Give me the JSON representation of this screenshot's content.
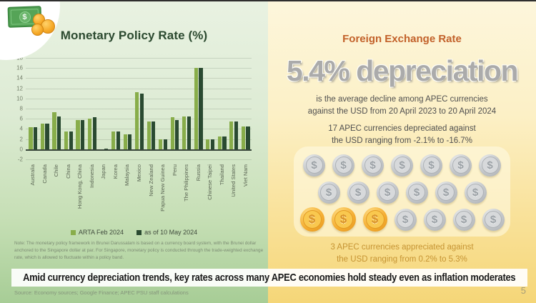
{
  "slide": {
    "headline": "Amid currency depreciation trends, key rates across many APEC economies hold steady even as inflation moderates",
    "source": "Source: Economy sources; Google Finance; APEC PSU staff calculations",
    "page_number": "5"
  },
  "icons": {
    "money_icon": "banknote-with-gold-coins",
    "dollar_glyph": "$"
  },
  "colors": {
    "bar_light_green": "#88ad4a",
    "bar_dark_green": "#2a4a31",
    "accent_orange": "#c2612a",
    "gold_text": "#c69433",
    "big_stat_gray": "#ababab"
  },
  "left": {
    "title": "Monetary Policy Rate (%)",
    "note": "Note: The monetary policy framework in Brunei Darussalam is based on a currency board system, with the Brunei dollar anchored to the Singapore dollar at par. For Singapore, monetary policy is conducted through the trade-weighted exchange rate, which is allowed to fluctuate within a policy band."
  },
  "chart_data": {
    "type": "bar",
    "title": "Monetary Policy Rate (%)",
    "categories": [
      "Australia",
      "Canada",
      "Chile",
      "China",
      "Hong Kong, China",
      "Indonesia",
      "Japan",
      "Korea",
      "Malaysia",
      "Mexico",
      "New Zealand",
      "Papua New Guinea",
      "Peru",
      "The Philippines",
      "Russia",
      "Chinese Taipei",
      "Thailand",
      "United States",
      "Viet Nam"
    ],
    "series": [
      {
        "name": "ARTA Feb 2024",
        "color": "#88ad4a",
        "values": [
          4.35,
          5.0,
          7.25,
          3.45,
          5.75,
          6.0,
          -0.1,
          3.5,
          3.0,
          11.25,
          5.5,
          2.0,
          6.25,
          6.5,
          16.0,
          1.875,
          2.5,
          5.5,
          4.5
        ]
      },
      {
        "name": "as of 10 May 2024",
        "color": "#2a4a31",
        "values": [
          4.35,
          5.0,
          6.5,
          3.45,
          5.75,
          6.25,
          0.1,
          3.5,
          3.0,
          11.0,
          5.5,
          2.0,
          5.75,
          6.5,
          16.0,
          2.0,
          2.5,
          5.5,
          4.5
        ]
      }
    ],
    "xlabel": "",
    "ylabel": "",
    "ylim": [
      -2,
      18
    ],
    "yticks": [
      18,
      16,
      14,
      12,
      10,
      8,
      6,
      4,
      2,
      0,
      -2
    ],
    "grid": true,
    "legend_position": "bottom"
  },
  "right": {
    "title": "Foreign Exchange Rate",
    "big_stat": "5.4% depreciation",
    "caption_lines": [
      "is the average decline among APEC currencies",
      "against the USD from 20 April 2023 to 20 April 2024"
    ],
    "depreciated_lines": [
      "17 APEC currencies depreciated against",
      "the USD ranging from -2.1% to -16.7%"
    ],
    "appreciated_lines": [
      "3 APEC currencies appreciated against",
      "the USD ranging from 0.2% to 5.3%"
    ],
    "coins": {
      "silver_count": 17,
      "gold_count": 3,
      "rows": [
        [
          "silver",
          "silver",
          "silver",
          "silver",
          "silver",
          "silver",
          "silver"
        ],
        [
          "silver",
          "silver",
          "silver",
          "silver",
          "silver",
          "silver"
        ],
        [
          "gold",
          "gold",
          "gold",
          "silver",
          "silver",
          "silver",
          "silver"
        ]
      ]
    }
  }
}
